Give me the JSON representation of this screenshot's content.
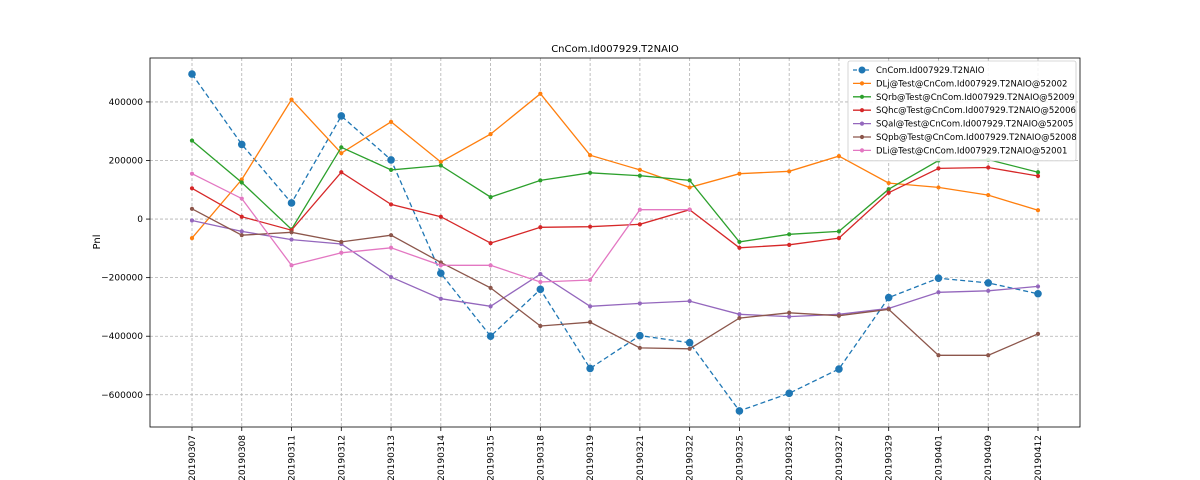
{
  "chart_data": {
    "type": "line",
    "title": "CnCom.Id007929.T2NAIO",
    "xlabel": "",
    "ylabel": "Pnl",
    "ylim": [
      -710000,
      550000
    ],
    "yticks": [
      -600000,
      -400000,
      -200000,
      0,
      200000,
      400000
    ],
    "grid": true,
    "legend_position": "top-right",
    "categories": [
      "20190307",
      "20190308",
      "20190311",
      "20190312",
      "20190313",
      "20190314",
      "20190315",
      "20190318",
      "20190319",
      "20190321",
      "20190322",
      "20190325",
      "20190326",
      "20190327",
      "20190329",
      "20190401",
      "20190409",
      "20190412"
    ],
    "series": [
      {
        "name": "CnCom.Id007929.T2NAIO",
        "color": "#1f77b4",
        "style": "dashed",
        "marker": "large",
        "values": [
          495000,
          255000,
          55000,
          352000,
          202000,
          -185000,
          -400000,
          -240000,
          -510000,
          -398000,
          -422000,
          -655000,
          -595000,
          -512000,
          -268000,
          -202000,
          -218000,
          -255000
        ]
      },
      {
        "name": "DLj@Test@CnCom.Id007929.T2NAIO@52002",
        "color": "#ff7f0e",
        "style": "solid",
        "marker": "small",
        "values": [
          -65000,
          135000,
          408000,
          225000,
          332000,
          195000,
          290000,
          428000,
          218000,
          168000,
          108000,
          155000,
          163000,
          215000,
          123000,
          108000,
          82000,
          30000
        ]
      },
      {
        "name": "SQrb@Test@CnCom.Id007929.T2NAIO@52009",
        "color": "#2ca02c",
        "style": "solid",
        "marker": "small",
        "values": [
          268000,
          125000,
          -35000,
          245000,
          168000,
          183000,
          75000,
          132000,
          158000,
          148000,
          132000,
          -78000,
          -52000,
          -42000,
          102000,
          200000,
          203000,
          160000
        ]
      },
      {
        "name": "SQhc@Test@CnCom.Id007929.T2NAIO@52006",
        "color": "#d62728",
        "style": "solid",
        "marker": "small",
        "values": [
          105000,
          8000,
          -38000,
          160000,
          50000,
          8000,
          -82000,
          -28000,
          -26000,
          -18000,
          32000,
          -98000,
          -88000,
          -65000,
          90000,
          173000,
          176000,
          147000
        ]
      },
      {
        "name": "SQal@Test@CnCom.Id007929.T2NAIO@52005",
        "color": "#9467bd",
        "style": "solid",
        "marker": "small",
        "values": [
          -5000,
          -42000,
          -70000,
          -85000,
          -198000,
          -272000,
          -298000,
          -188000,
          -298000,
          -288000,
          -280000,
          -325000,
          -333000,
          -325000,
          -305000,
          -250000,
          -245000,
          -230000
        ]
      },
      {
        "name": "SQpb@Test@CnCom.Id007929.T2NAIO@52008",
        "color": "#8c564b",
        "style": "solid",
        "marker": "small",
        "values": [
          35000,
          -55000,
          -45000,
          -78000,
          -55000,
          -148000,
          -235000,
          -365000,
          -352000,
          -440000,
          -443000,
          -338000,
          -320000,
          -330000,
          -308000,
          -465000,
          -465000,
          -392000
        ]
      },
      {
        "name": "DLi@Test@CnCom.Id007929.T2NAIO@52001",
        "color": "#e377c2",
        "style": "solid",
        "marker": "small",
        "values": [
          155000,
          70000,
          -158000,
          -115000,
          -98000,
          -158000,
          -158000,
          -215000,
          -208000,
          32000,
          32000,
          null,
          null,
          null,
          null,
          null,
          null,
          null
        ]
      }
    ]
  }
}
